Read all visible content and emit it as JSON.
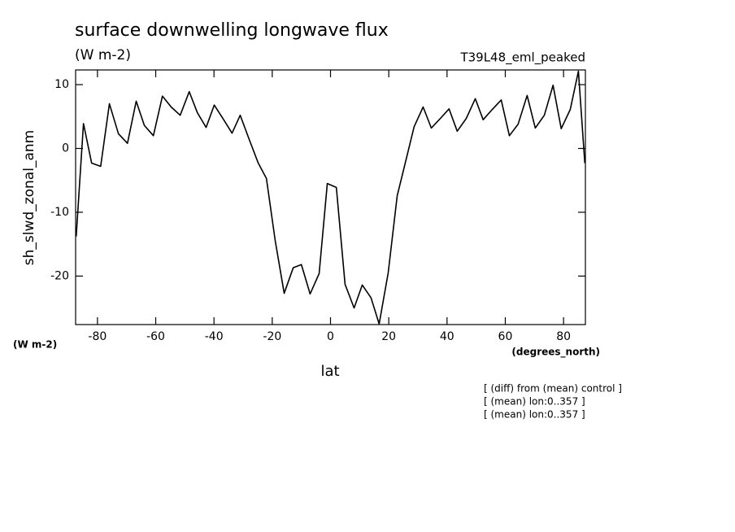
{
  "chart_data": {
    "type": "line",
    "title": "surface downwelling longwave flux",
    "units": "(W m-2)",
    "dataset": "T39L48_eml_peaked",
    "y_label": "sh_slwd_zonal_anm",
    "y_units": "(W m-2)",
    "x_units": "(degrees_north)",
    "x_label": "lat",
    "notes": [
      "[ (diff) from (mean) control ]",
      "[ (mean) lon:0..357 ]",
      "[ (mean) lon:0..357 ]"
    ],
    "xlim": [
      -87.5,
      87.5
    ],
    "ylim": [
      -27.6,
      12.3
    ],
    "xticks": [
      -80,
      -60,
      -40,
      -20,
      0,
      20,
      40,
      60,
      80
    ],
    "yticks": [
      -20,
      -10,
      0,
      10
    ],
    "grid": false,
    "series": [
      {
        "name": "sh_slwd_zonal_anm",
        "color": "#000000",
        "x": [
          -87.3,
          -84.8,
          -82.0,
          -78.9,
          -75.9,
          -72.8,
          -69.7,
          -66.7,
          -63.9,
          -60.8,
          -57.7,
          -54.7,
          -51.6,
          -48.5,
          -45.7,
          -42.7,
          -39.9,
          -36.8,
          -33.8,
          -31.0,
          -27.9,
          -24.8,
          -22.0,
          -19.0,
          -15.9,
          -12.8,
          -10.0,
          -7.0,
          -3.9,
          -1.1,
          2.0,
          5.0,
          8.1,
          10.9,
          13.9,
          16.7,
          19.8,
          22.9,
          25.7,
          28.7,
          31.8,
          34.6,
          37.7,
          40.7,
          43.5,
          46.6,
          49.7,
          52.4,
          55.5,
          58.6,
          61.4,
          64.4,
          67.5,
          70.3,
          73.4,
          76.4,
          79.2,
          82.3,
          85.1,
          87.3
        ],
        "values": [
          -13.8,
          3.9,
          -2.3,
          -2.8,
          7.0,
          2.3,
          0.8,
          7.4,
          3.6,
          2.0,
          8.2,
          6.5,
          5.2,
          8.9,
          5.6,
          3.3,
          6.8,
          4.6,
          2.4,
          5.2,
          1.4,
          -2.3,
          -4.7,
          -14.4,
          -22.7,
          -18.7,
          -18.2,
          -22.8,
          -19.6,
          -5.5,
          -6.1,
          -21.3,
          -25.0,
          -21.4,
          -23.4,
          -27.5,
          -19.5,
          -7.4,
          -2.2,
          3.4,
          6.5,
          3.2,
          4.7,
          6.2,
          2.7,
          4.7,
          7.8,
          4.5,
          6.1,
          7.6,
          2.0,
          3.8,
          8.3,
          3.2,
          5.2,
          9.9,
          3.1,
          6.1,
          12.1,
          -2.3
        ]
      }
    ]
  }
}
